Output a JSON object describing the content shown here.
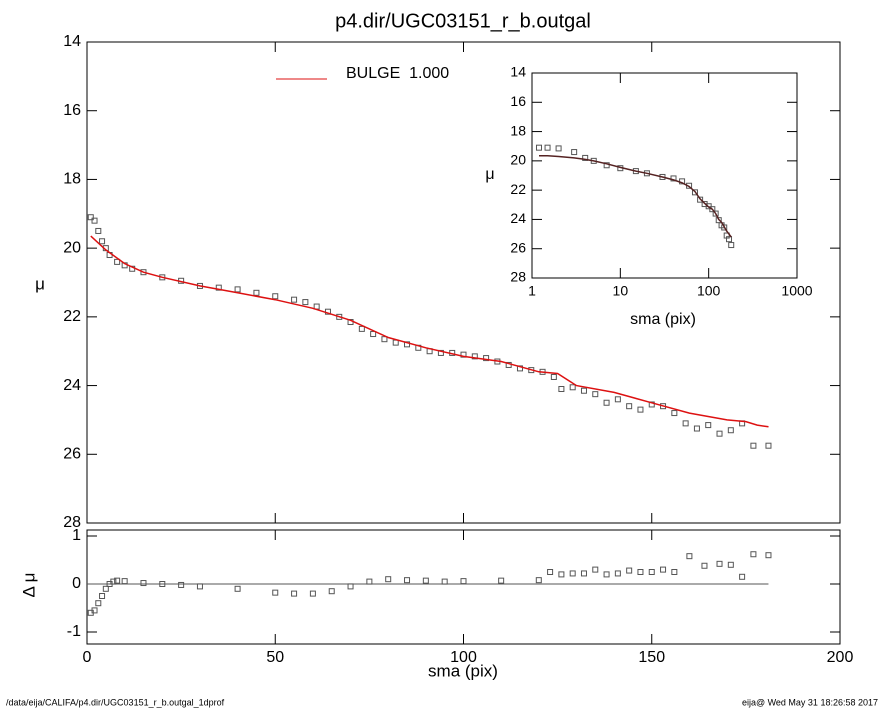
{
  "footer": {
    "left": "/data/eija/CALIFA/p4.dir/UGC03151_r_b.outgal_1dprof",
    "right": "eija@  Wed May 31 18:26:58 2017"
  },
  "chart_data": [
    {
      "type": "scatter",
      "title": "p4.dir/UGC03151_r_b.outgal",
      "y_label": "μ",
      "xlim": [
        0,
        200
      ],
      "ylim": [
        28,
        14
      ],
      "yticks": [
        14,
        16,
        18,
        20,
        22,
        24,
        26,
        28
      ],
      "series": [
        {
          "mark": "square",
          "color": "#555555",
          "x": [
            1,
            2,
            3,
            4,
            5,
            6,
            8,
            10,
            12,
            15,
            20,
            25,
            30,
            35,
            40,
            45,
            50,
            55,
            58,
            61,
            64,
            67,
            70,
            73,
            76,
            79,
            82,
            85,
            88,
            91,
            94,
            97,
            100,
            103,
            106,
            109,
            112,
            115,
            118,
            121,
            124,
            126,
            129,
            132,
            135,
            138,
            141,
            144,
            147,
            150,
            153,
            156,
            159,
            162,
            165,
            168,
            171,
            174,
            177,
            181
          ],
          "values": [
            19.1,
            19.2,
            19.5,
            19.8,
            20.0,
            20.2,
            20.4,
            20.5,
            20.6,
            20.7,
            20.85,
            20.95,
            21.1,
            21.15,
            21.2,
            21.3,
            21.4,
            21.5,
            21.57,
            21.7,
            21.85,
            22.0,
            22.15,
            22.35,
            22.5,
            22.65,
            22.75,
            22.8,
            22.9,
            23.0,
            23.05,
            23.05,
            23.1,
            23.15,
            23.2,
            23.3,
            23.4,
            23.5,
            23.55,
            23.6,
            23.75,
            24.1,
            24.05,
            24.15,
            24.25,
            24.5,
            24.4,
            24.6,
            24.7,
            24.55,
            24.6,
            24.8,
            25.1,
            25.25,
            25.15,
            25.4,
            25.3,
            25.1,
            25.75,
            25.75
          ]
        },
        {
          "mark": "line",
          "name": "BULGE  1.000",
          "color": "#dd1111",
          "x": [
            1,
            5,
            10,
            15,
            20,
            30,
            40,
            50,
            60,
            70,
            80,
            90,
            100,
            110,
            120,
            125,
            130,
            140,
            150,
            160,
            170,
            175,
            178,
            181
          ],
          "values": [
            19.65,
            20.05,
            20.45,
            20.7,
            20.85,
            21.1,
            21.3,
            21.5,
            21.75,
            22.1,
            22.6,
            22.9,
            23.15,
            23.3,
            23.6,
            23.65,
            24.0,
            24.2,
            24.5,
            24.8,
            25.0,
            25.05,
            25.15,
            25.2
          ]
        }
      ]
    },
    {
      "type": "scatter",
      "x_label": "sma (pix)",
      "y_label": "Δ μ",
      "xlim": [
        0,
        200
      ],
      "xticks": [
        0,
        50,
        100,
        150,
        200
      ],
      "ylim": [
        -1.25,
        1.125
      ],
      "yticks": [
        -1,
        0,
        1
      ],
      "reference_line": 0,
      "series": [
        {
          "mark": "square",
          "color": "#555555",
          "x": [
            1,
            2,
            3,
            4,
            5,
            6,
            7,
            8,
            10,
            15,
            20,
            25,
            30,
            40,
            50,
            55,
            60,
            65,
            70,
            75,
            80,
            85,
            90,
            95,
            100,
            110,
            120,
            123,
            126,
            129,
            132,
            135,
            138,
            141,
            144,
            147,
            150,
            153,
            156,
            160,
            164,
            168,
            171,
            174,
            177,
            181
          ],
          "values": [
            -0.6,
            -0.55,
            -0.4,
            -0.25,
            -0.1,
            0,
            0.05,
            0.07,
            0.06,
            0.02,
            0,
            -0.02,
            -0.05,
            -0.1,
            -0.18,
            -0.2,
            -0.2,
            -0.15,
            -0.05,
            0.05,
            0.1,
            0.08,
            0.07,
            0.05,
            0.06,
            0.07,
            0.08,
            0.25,
            0.2,
            0.22,
            0.22,
            0.3,
            0.2,
            0.22,
            0.28,
            0.25,
            0.25,
            0.3,
            0.25,
            0.58,
            0.38,
            0.42,
            0.4,
            0.15,
            0.62,
            0.6
          ]
        }
      ]
    },
    {
      "type": "scatter",
      "x_label": "sma (pix)",
      "y_label": "μ",
      "xscale": "log",
      "xlim": [
        1,
        1000
      ],
      "xticks": [
        1,
        10,
        100,
        1000
      ],
      "ylim": [
        28,
        14
      ],
      "yticks": [
        14,
        16,
        18,
        20,
        22,
        24,
        26,
        28
      ],
      "series": [
        {
          "mark": "square",
          "color": "#555555",
          "x": [
            1.2,
            1.5,
            2,
            3,
            4,
            5,
            7,
            10,
            15,
            20,
            30,
            40,
            50,
            60,
            70,
            80,
            90,
            100,
            110,
            120,
            130,
            140,
            150,
            160,
            170,
            180
          ],
          "values": [
            19.1,
            19.1,
            19.15,
            19.4,
            19.8,
            20.0,
            20.3,
            20.5,
            20.7,
            20.85,
            21.1,
            21.2,
            21.4,
            21.7,
            22.15,
            22.65,
            22.95,
            23.1,
            23.3,
            23.6,
            24.05,
            24.4,
            24.55,
            25.1,
            25.35,
            25.75
          ]
        },
        {
          "mark": "line",
          "color": "#552222",
          "x": [
            1.2,
            1.5,
            2,
            3,
            4,
            5,
            7,
            10,
            15,
            20,
            30,
            40,
            50,
            60,
            70,
            80,
            90,
            100,
            110,
            120,
            130,
            140,
            150,
            160,
            170,
            180
          ],
          "values": [
            19.65,
            19.65,
            19.7,
            19.8,
            19.9,
            20.0,
            20.2,
            20.45,
            20.7,
            20.85,
            21.1,
            21.3,
            21.5,
            21.75,
            22.1,
            22.6,
            22.9,
            23.15,
            23.3,
            23.6,
            24.0,
            24.2,
            24.5,
            24.8,
            25.0,
            25.2
          ]
        }
      ]
    }
  ]
}
